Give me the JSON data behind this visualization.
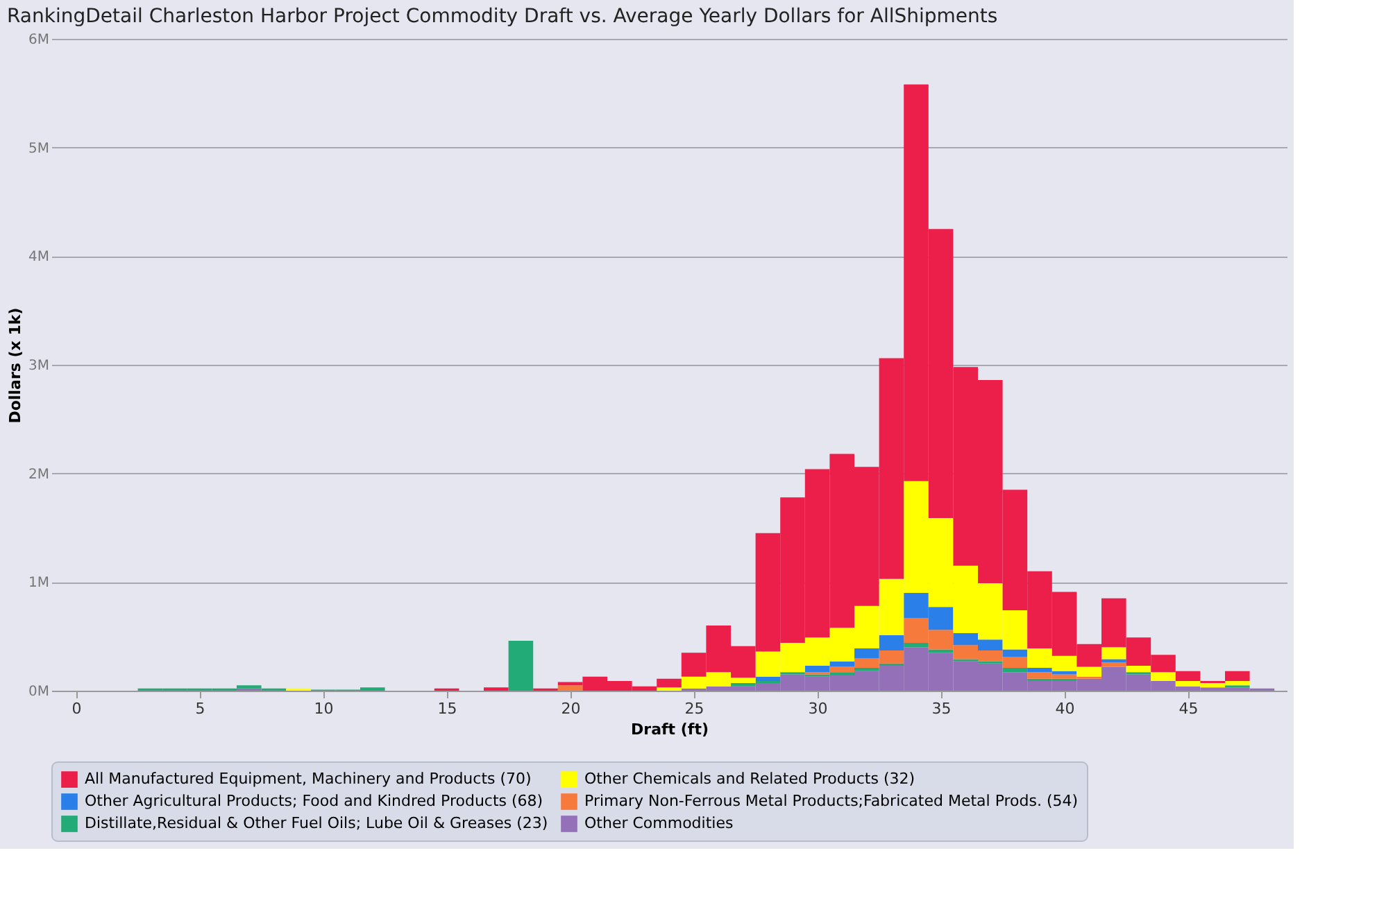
{
  "chart_data": {
    "type": "bar",
    "stacked": true,
    "title": "RankingDetail Charleston Harbor Project Commodity Draft vs. Average Yearly Dollars for AllShipments",
    "xlabel": "Draft (ft)",
    "ylabel": "Dollars (x 1k)",
    "x": [
      0,
      1,
      2,
      3,
      4,
      5,
      6,
      7,
      8,
      9,
      10,
      11,
      12,
      13,
      14,
      15,
      16,
      17,
      18,
      19,
      20,
      21,
      22,
      23,
      24,
      25,
      26,
      27,
      28,
      29,
      30,
      31,
      32,
      33,
      34,
      35,
      36,
      37,
      38,
      39,
      40,
      41,
      42,
      43,
      44,
      45,
      46,
      47,
      48
    ],
    "xlim": [
      -1,
      49
    ],
    "xticks": [
      0,
      5,
      10,
      15,
      20,
      25,
      30,
      35,
      40,
      45
    ],
    "ylim": [
      0,
      6
    ],
    "yticks": [
      {
        "value": 0,
        "label": "0M"
      },
      {
        "value": 1,
        "label": "1M"
      },
      {
        "value": 2,
        "label": "2M"
      },
      {
        "value": 3,
        "label": "3M"
      },
      {
        "value": 4,
        "label": "4M"
      },
      {
        "value": 5,
        "label": "5M"
      },
      {
        "value": 6,
        "label": "6M"
      }
    ],
    "grid": "y",
    "legend": "bottom",
    "series": [
      {
        "name": "Other Commodities",
        "color": "#9370b8",
        "values": [
          0,
          0,
          0,
          0,
          0,
          0,
          0,
          0.02,
          0,
          0,
          0,
          0,
          0,
          0,
          0,
          0,
          0,
          0,
          0,
          0,
          0,
          0,
          0,
          0,
          0,
          0.02,
          0.04,
          0.04,
          0.07,
          0.15,
          0.13,
          0.14,
          0.18,
          0.23,
          0.4,
          0.35,
          0.27,
          0.25,
          0.17,
          0.09,
          0.09,
          0.11,
          0.22,
          0.15,
          0.09,
          0.04,
          0.03,
          0.03,
          0.02
        ]
      },
      {
        "name": "Distillate,Residual & Other Fuel Oils; Lube Oil & Greases (23)",
        "color": "#22aa77",
        "values": [
          0,
          0,
          0,
          0.02,
          0.02,
          0.02,
          0.02,
          0.03,
          0.02,
          0,
          0.01,
          0.01,
          0.03,
          0,
          0,
          0,
          0,
          0,
          0.46,
          0,
          0,
          0,
          0,
          0,
          0,
          0,
          0,
          0.03,
          0.02,
          0.02,
          0.02,
          0.03,
          0.03,
          0.02,
          0.04,
          0.03,
          0.02,
          0.02,
          0.04,
          0.02,
          0.02,
          0,
          0,
          0.02,
          0,
          0,
          0,
          0.02,
          0
        ]
      },
      {
        "name": "Primary Non-Ferrous Metal Products;Fabricated Metal Prods. (54)",
        "color": "#f57a3c",
        "values": [
          0,
          0,
          0,
          0,
          0,
          0,
          0,
          0,
          0,
          0,
          0,
          0,
          0,
          0,
          0,
          0,
          0,
          0,
          0,
          0,
          0.05,
          0,
          0,
          0,
          0,
          0,
          0,
          0,
          0,
          0,
          0.02,
          0.05,
          0.09,
          0.12,
          0.23,
          0.18,
          0.13,
          0.1,
          0.1,
          0.06,
          0.04,
          0.02,
          0.04,
          0,
          0,
          0,
          0,
          0,
          0
        ]
      },
      {
        "name": "Other Agricultural Products; Food and Kindred Products (68)",
        "color": "#2a7fe8",
        "values": [
          0,
          0,
          0,
          0,
          0,
          0,
          0,
          0,
          0,
          0,
          0,
          0,
          0,
          0,
          0,
          0,
          0,
          0,
          0,
          0,
          0,
          0,
          0,
          0,
          0,
          0,
          0,
          0,
          0.04,
          0,
          0.06,
          0.05,
          0.09,
          0.14,
          0.23,
          0.21,
          0.11,
          0.1,
          0.07,
          0.04,
          0.03,
          0,
          0.03,
          0,
          0,
          0,
          0,
          0,
          0
        ]
      },
      {
        "name": "Other Chemicals and Related Products (32)",
        "color": "#ffff00",
        "values": [
          0,
          0,
          0,
          0,
          0,
          0,
          0,
          0,
          0,
          0.02,
          0,
          0,
          0,
          0,
          0,
          0,
          0,
          0,
          0,
          0,
          0,
          0,
          0,
          0,
          0.03,
          0.11,
          0.13,
          0.05,
          0.23,
          0.27,
          0.26,
          0.31,
          0.39,
          0.52,
          1.03,
          0.82,
          0.62,
          0.52,
          0.36,
          0.18,
          0.14,
          0.09,
          0.11,
          0.06,
          0.08,
          0.05,
          0.04,
          0.04,
          0
        ]
      },
      {
        "name": "All Manufactured Equipment, Machinery and Products (70)",
        "color": "#ec1e4a",
        "values": [
          0,
          0,
          0,
          0,
          0,
          0,
          0,
          0,
          0,
          0,
          0,
          0,
          0,
          0,
          0,
          0.02,
          0,
          0.03,
          0,
          0.02,
          0.03,
          0.13,
          0.09,
          0.04,
          0.08,
          0.22,
          0.43,
          0.29,
          1.09,
          1.34,
          1.55,
          1.6,
          1.28,
          2.03,
          3.65,
          2.66,
          1.83,
          1.87,
          1.11,
          0.71,
          0.59,
          0.21,
          0.45,
          0.26,
          0.16,
          0.09,
          0.02,
          0.09,
          0
        ]
      }
    ]
  }
}
